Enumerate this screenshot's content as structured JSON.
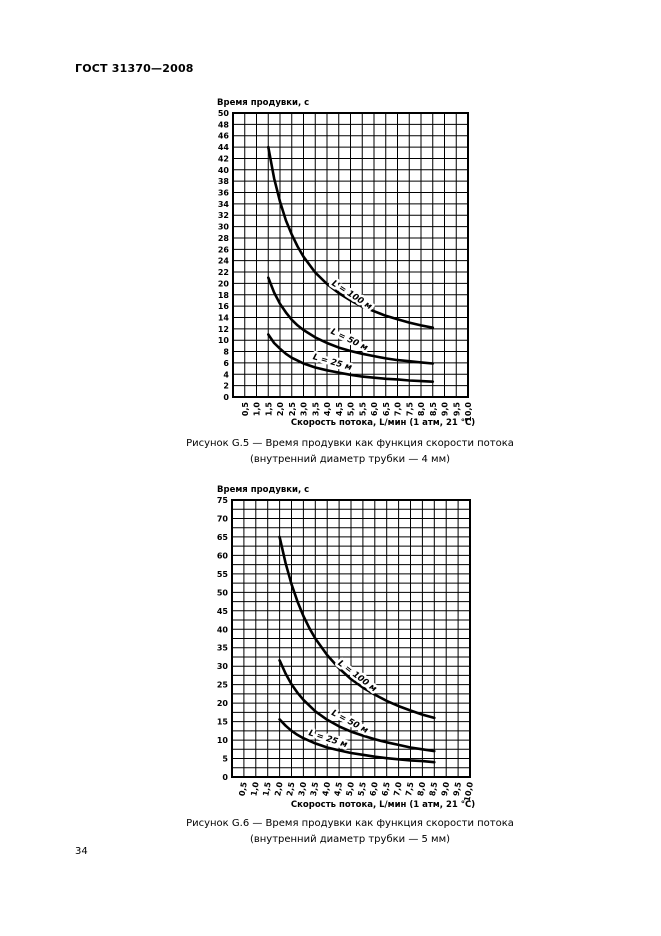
{
  "page": {
    "header": "ГОСТ 31370—2008",
    "page_number": "34"
  },
  "chart_data": [
    {
      "type": "line",
      "title": "Время продувки, с",
      "xlabel": "Скорость потока, L/мин (1 атм, 21 °C)",
      "ylabel": "Время продувки, с",
      "xlim": [
        0,
        10
      ],
      "ylim": [
        0,
        50
      ],
      "x_grid_step": 0.5,
      "y_grid_step": 2,
      "grid": true,
      "x_tick_labels": [
        "0,5",
        "1,0",
        "1,5",
        "2,0",
        "2,5",
        "3,0",
        "3,5",
        "4,0",
        "4,5",
        "5,0",
        "5,5",
        "6,0",
        "6,5",
        "7,0",
        "7,5",
        "8,0",
        "8,5",
        "9,0",
        "9,5",
        "10,0"
      ],
      "y_tick_labels": [
        "0",
        "2",
        "4",
        "6",
        "8",
        "10",
        "12",
        "14",
        "16",
        "18",
        "20",
        "22",
        "24",
        "26",
        "28",
        "30",
        "32",
        "34",
        "36",
        "38",
        "40",
        "42",
        "44",
        "46",
        "48",
        "50"
      ],
      "series": [
        {
          "name": "L = 100 м",
          "points": [
            [
              1.5,
              44
            ],
            [
              1.75,
              38.5
            ],
            [
              2,
              34.4
            ],
            [
              2.25,
              31.1
            ],
            [
              2.5,
              28.6
            ],
            [
              2.75,
              26.5
            ],
            [
              3,
              24.7
            ],
            [
              3.5,
              21.9
            ],
            [
              4,
              19.9
            ],
            [
              4.5,
              18.3
            ],
            [
              5,
              17.0
            ],
            [
              5.5,
              15.9
            ],
            [
              6,
              15.1
            ],
            [
              6.5,
              14.3
            ],
            [
              7,
              13.7
            ],
            [
              7.5,
              13.1
            ],
            [
              8,
              12.6
            ],
            [
              8.5,
              12.2
            ]
          ],
          "label": {
            "x": 5.0,
            "y": 17.6,
            "angle": 33
          }
        },
        {
          "name": "L = 50 м",
          "points": [
            [
              1.5,
              21
            ],
            [
              1.75,
              18.4
            ],
            [
              2,
              16.4
            ],
            [
              2.25,
              14.9
            ],
            [
              2.5,
              13.6
            ],
            [
              2.75,
              12.6
            ],
            [
              3,
              11.8
            ],
            [
              3.5,
              10.5
            ],
            [
              4,
              9.5
            ],
            [
              4.5,
              8.7
            ],
            [
              5,
              8.1
            ],
            [
              5.5,
              7.6
            ],
            [
              6,
              7.2
            ],
            [
              6.5,
              6.8
            ],
            [
              7,
              6.5
            ],
            [
              7.5,
              6.3
            ],
            [
              8,
              6.1
            ],
            [
              8.5,
              5.9
            ]
          ],
          "label": {
            "x": 4.9,
            "y": 9.7,
            "angle": 26
          }
        },
        {
          "name": "L = 25 м",
          "points": [
            [
              1.5,
              11
            ],
            [
              1.75,
              9.5
            ],
            [
              2,
              8.5
            ],
            [
              2.25,
              7.6
            ],
            [
              2.5,
              6.9
            ],
            [
              2.75,
              6.4
            ],
            [
              3,
              5.9
            ],
            [
              3.5,
              5.2
            ],
            [
              4,
              4.7
            ],
            [
              4.5,
              4.3
            ],
            [
              5,
              3.9
            ],
            [
              5.5,
              3.6
            ],
            [
              6,
              3.4
            ],
            [
              6.5,
              3.2
            ],
            [
              7,
              3.1
            ],
            [
              7.5,
              2.9
            ],
            [
              8,
              2.8
            ],
            [
              8.5,
              2.7
            ]
          ],
          "label": {
            "x": 4.2,
            "y": 5.7,
            "angle": 16
          }
        }
      ],
      "caption_line1": "Рисунок G.5 — Время продувки как функция скорости потока",
      "caption_line2": "(внутренний диаметр трубки — 4 мм)"
    },
    {
      "type": "line",
      "title": "Время продувки, с",
      "xlabel": "Скорость потока, L/мин (1 атм, 21 °C)",
      "ylabel": "Время продувки, с",
      "xlim": [
        0,
        10
      ],
      "ylim": [
        0,
        75
      ],
      "x_grid_step": 0.5,
      "y_grid_step": 2.5,
      "grid": true,
      "x_tick_labels": [
        "0,5",
        "1,0",
        "1,5",
        "2,0",
        "2,5",
        "3,0",
        "3,5",
        "4,0",
        "4,5",
        "5,0",
        "5,5",
        "6,0",
        "6,5",
        "7,0",
        "7,5",
        "8,0",
        "8,5",
        "9,0",
        "9,5",
        "10,0"
      ],
      "y_tick_labels": [
        "0",
        "5",
        "10",
        "15",
        "20",
        "25",
        "30",
        "35",
        "40",
        "45",
        "50",
        "55",
        "60",
        "65",
        "70",
        "75"
      ],
      "series": [
        {
          "name": "L = 100 м",
          "points": [
            [
              2,
              65
            ],
            [
              2.25,
              57.9
            ],
            [
              2.5,
              52.2
            ],
            [
              2.75,
              47.5
            ],
            [
              3,
              43.6
            ],
            [
              3.25,
              40.3
            ],
            [
              3.5,
              37.5
            ],
            [
              4,
              33.0
            ],
            [
              4.5,
              29.4
            ],
            [
              5,
              26.5
            ],
            [
              5.5,
              24.2
            ],
            [
              6,
              22.3
            ],
            [
              6.5,
              20.6
            ],
            [
              7,
              19.2
            ],
            [
              7.5,
              18.0
            ],
            [
              8,
              16.9
            ],
            [
              8.5,
              16.0
            ]
          ],
          "label": {
            "x": 5.2,
            "y": 26.8,
            "angle": 37
          }
        },
        {
          "name": "L = 50 м",
          "points": [
            [
              2,
              31.6
            ],
            [
              2.25,
              28.0
            ],
            [
              2.5,
              25.1
            ],
            [
              2.75,
              22.8
            ],
            [
              3,
              20.9
            ],
            [
              3.5,
              17.8
            ],
            [
              4,
              15.5
            ],
            [
              4.5,
              13.7
            ],
            [
              5,
              12.3
            ],
            [
              5.5,
              11.2
            ],
            [
              6,
              10.2
            ],
            [
              6.5,
              9.4
            ],
            [
              7,
              8.7
            ],
            [
              7.5,
              8.0
            ],
            [
              8,
              7.5
            ],
            [
              8.5,
              7.0
            ]
          ],
          "label": {
            "x": 4.9,
            "y": 14.4,
            "angle": 28
          }
        },
        {
          "name": "L = 25 м",
          "points": [
            [
              2,
              15.6
            ],
            [
              2.25,
              13.9
            ],
            [
              2.5,
              12.5
            ],
            [
              2.75,
              11.4
            ],
            [
              3,
              10.5
            ],
            [
              3.5,
              9.1
            ],
            [
              4,
              8.0
            ],
            [
              4.5,
              7.2
            ],
            [
              5,
              6.5
            ],
            [
              5.5,
              6.0
            ],
            [
              6,
              5.5
            ],
            [
              6.5,
              5.1
            ],
            [
              7,
              4.8
            ],
            [
              7.5,
              4.5
            ],
            [
              8,
              4.3
            ],
            [
              8.5,
              4.0
            ]
          ],
          "label": {
            "x": 4.0,
            "y": 9.7,
            "angle": 18
          }
        }
      ],
      "caption_line1": "Рисунок G.6 — Время продувки как функция скорости потока",
      "caption_line2": "(внутренний диаметр трубки — 5 мм)"
    }
  ]
}
